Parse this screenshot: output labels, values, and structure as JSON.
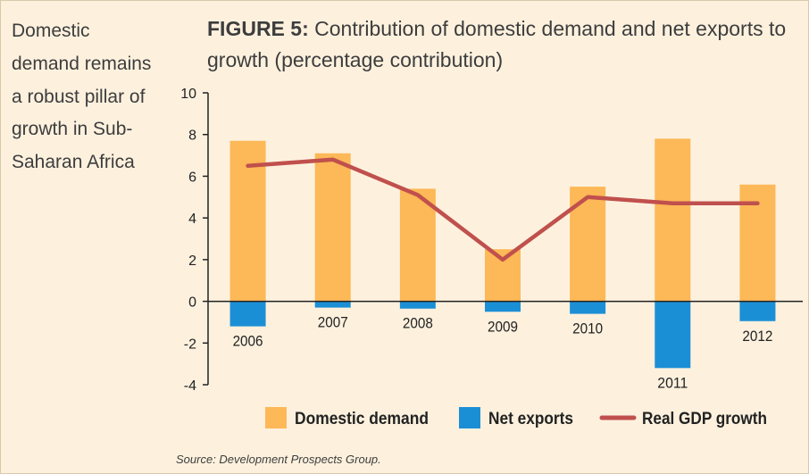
{
  "sidebar_text": "Domestic demand remains a robust pillar of growth in Sub-Saharan Africa",
  "title": {
    "lead": "FIGURE 5:",
    "text": "Contribution of domestic demand and net exports to growth (percentage contribution)"
  },
  "source": "Source: Development Prospects Group.",
  "colors": {
    "background": "#fdf1de",
    "domestic_demand": "#fdb857",
    "net_exports": "#1b8fd6",
    "real_gdp_growth": "#c0504d",
    "axis": "#222222"
  },
  "chart_data": {
    "type": "bar",
    "title": "Contribution of domestic demand and net exports to growth (percentage contribution)",
    "xlabel": "",
    "ylabel": "",
    "categories": [
      "2006",
      "2007",
      "2008",
      "2009",
      "2010",
      "2011",
      "2012"
    ],
    "ylim": [
      -4,
      10
    ],
    "yticks": [
      "10",
      "8",
      "6",
      "4",
      "2",
      "0",
      "-2",
      "-4"
    ],
    "grid": false,
    "legend_position": "bottom",
    "series": [
      {
        "name": "Domestic demand",
        "type": "bar",
        "values": [
          7.7,
          7.1,
          5.4,
          2.5,
          5.5,
          7.8,
          5.6
        ]
      },
      {
        "name": "Net exports",
        "type": "bar",
        "values": [
          -1.2,
          -0.3,
          -0.35,
          -0.5,
          -0.6,
          -3.2,
          -0.95
        ]
      },
      {
        "name": "Real GDP growth",
        "type": "line",
        "values": [
          6.5,
          6.8,
          5.1,
          2.0,
          5.0,
          4.7,
          4.7
        ]
      }
    ]
  }
}
